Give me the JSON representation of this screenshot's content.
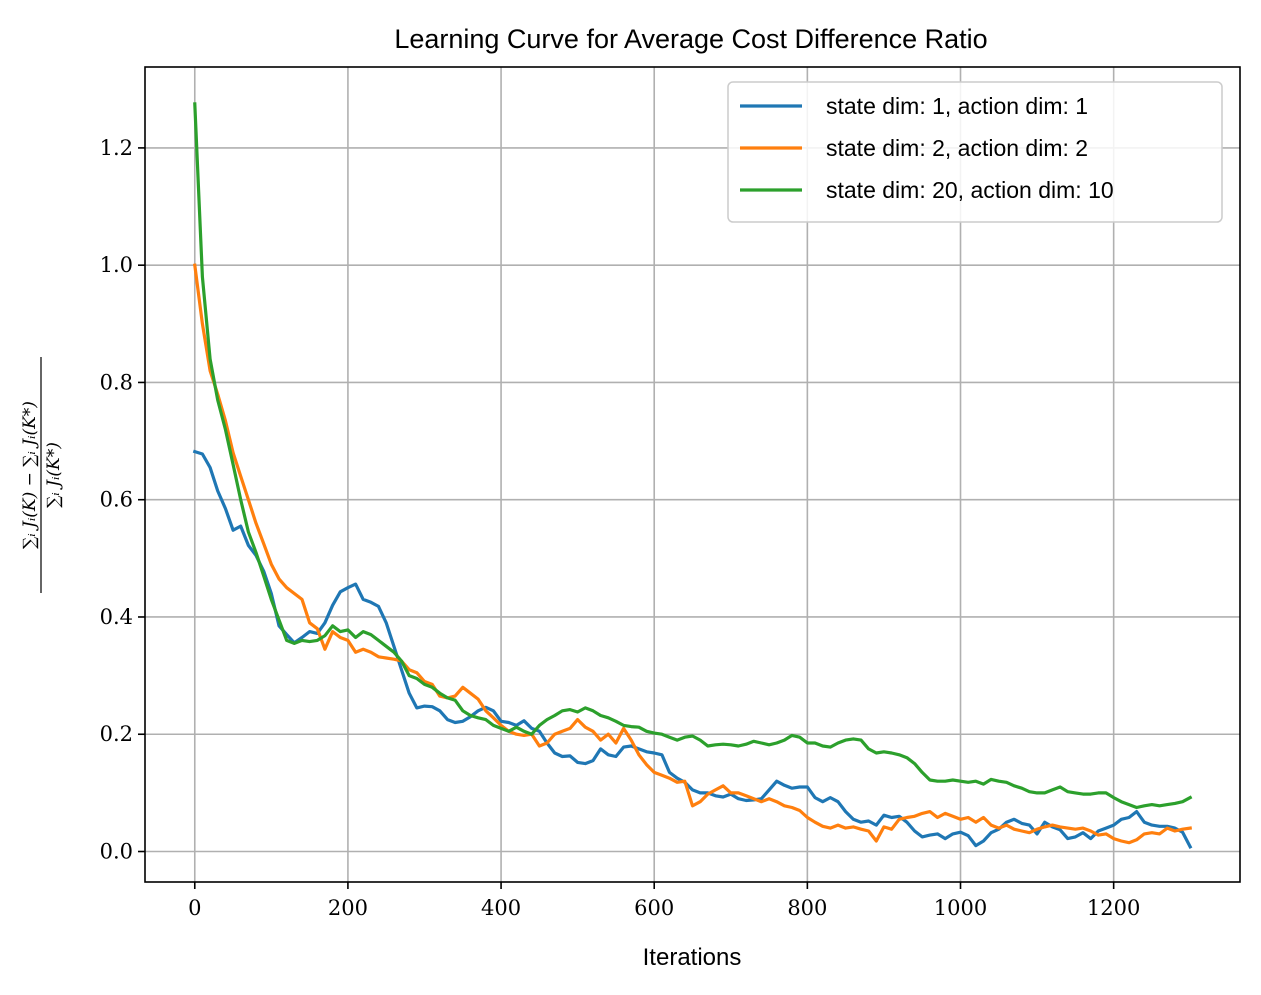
{
  "chart_data": {
    "type": "line",
    "title": "Learning Curve for Average Cost Difference Ratio",
    "xlabel": "Iterations",
    "ylabel_top": "∑ᵢ Jᵢ(K) − ∑ᵢ Jᵢ(K*)",
    "ylabel_bottom": "∑ᵢ Jᵢ(K*)",
    "xlim": [
      -65,
      1365
    ],
    "ylim": [
      -0.052,
      1.338
    ],
    "xticks": [
      0,
      200,
      400,
      600,
      800,
      1000,
      1200
    ],
    "yticks": [
      0.0,
      0.2,
      0.4,
      0.6,
      0.8,
      1.0,
      1.2
    ],
    "xtick_labels": [
      "0",
      "200",
      "400",
      "600",
      "800",
      "1000",
      "1200"
    ],
    "ytick_labels": [
      "0.0",
      "0.2",
      "0.4",
      "0.6",
      "0.8",
      "1.0",
      "1.2"
    ],
    "grid": true,
    "legend_position": "top-right",
    "series": [
      {
        "name": "state dim: 1, action dim: 1",
        "color": "#1f77b4",
        "x": [
          0,
          10,
          20,
          30,
          40,
          50,
          60,
          70,
          80,
          90,
          100,
          110,
          120,
          130,
          140,
          150,
          160,
          170,
          180,
          190,
          200,
          210,
          220,
          230,
          240,
          250,
          260,
          270,
          280,
          290,
          300,
          310,
          320,
          330,
          340,
          350,
          360,
          370,
          380,
          390,
          400,
          410,
          420,
          430,
          440,
          450,
          460,
          470,
          480,
          490,
          500,
          510,
          520,
          530,
          540,
          550,
          560,
          570,
          580,
          590,
          600,
          610,
          620,
          630,
          640,
          650,
          660,
          670,
          680,
          690,
          700,
          710,
          720,
          730,
          740,
          750,
          760,
          770,
          780,
          790,
          800,
          810,
          820,
          830,
          840,
          850,
          860,
          870,
          880,
          890,
          900,
          910,
          920,
          930,
          940,
          950,
          960,
          970,
          980,
          990,
          1000,
          1010,
          1020,
          1030,
          1040,
          1050,
          1060,
          1070,
          1080,
          1090,
          1100,
          1110,
          1120,
          1130,
          1140,
          1150,
          1160,
          1170,
          1180,
          1190,
          1200,
          1210,
          1220,
          1230,
          1240,
          1250,
          1260,
          1270,
          1280,
          1290,
          1300
        ],
        "values": [
          0.682,
          0.678,
          0.655,
          0.615,
          0.585,
          0.548,
          0.555,
          0.522,
          0.505,
          0.478,
          0.44,
          0.385,
          0.37,
          0.356,
          0.365,
          0.375,
          0.372,
          0.39,
          0.42,
          0.443,
          0.45,
          0.456,
          0.43,
          0.425,
          0.418,
          0.39,
          0.35,
          0.31,
          0.27,
          0.245,
          0.248,
          0.247,
          0.24,
          0.225,
          0.22,
          0.222,
          0.23,
          0.24,
          0.246,
          0.24,
          0.222,
          0.22,
          0.215,
          0.223,
          0.21,
          0.205,
          0.185,
          0.168,
          0.162,
          0.163,
          0.152,
          0.15,
          0.155,
          0.175,
          0.165,
          0.162,
          0.178,
          0.18,
          0.175,
          0.17,
          0.168,
          0.165,
          0.135,
          0.125,
          0.118,
          0.105,
          0.1,
          0.1,
          0.095,
          0.093,
          0.098,
          0.09,
          0.087,
          0.088,
          0.09,
          0.105,
          0.12,
          0.113,
          0.108,
          0.11,
          0.11,
          0.092,
          0.085,
          0.092,
          0.085,
          0.068,
          0.055,
          0.05,
          0.052,
          0.045,
          0.062,
          0.058,
          0.06,
          0.05,
          0.035,
          0.025,
          0.028,
          0.03,
          0.022,
          0.03,
          0.033,
          0.027,
          0.01,
          0.018,
          0.032,
          0.038,
          0.05,
          0.055,
          0.048,
          0.045,
          0.03,
          0.05,
          0.042,
          0.037,
          0.022,
          0.025,
          0.032,
          0.022,
          0.035,
          0.04,
          0.045,
          0.055,
          0.058,
          0.068,
          0.05,
          0.045,
          0.043,
          0.043,
          0.04,
          0.033,
          0.008
        ]
      },
      {
        "name": "state dim: 2, action dim: 2",
        "color": "#ff7f0e",
        "x": [
          0,
          10,
          20,
          30,
          40,
          50,
          60,
          70,
          80,
          90,
          100,
          110,
          120,
          130,
          140,
          150,
          160,
          170,
          180,
          190,
          200,
          210,
          220,
          230,
          240,
          250,
          260,
          270,
          280,
          290,
          300,
          310,
          320,
          330,
          340,
          350,
          360,
          370,
          380,
          390,
          400,
          410,
          420,
          430,
          440,
          450,
          460,
          470,
          480,
          490,
          500,
          510,
          520,
          530,
          540,
          550,
          560,
          570,
          580,
          590,
          600,
          610,
          620,
          630,
          640,
          650,
          660,
          670,
          680,
          690,
          700,
          710,
          720,
          730,
          740,
          750,
          760,
          770,
          780,
          790,
          800,
          810,
          820,
          830,
          840,
          850,
          860,
          870,
          880,
          890,
          900,
          910,
          920,
          930,
          940,
          950,
          960,
          970,
          980,
          990,
          1000,
          1010,
          1020,
          1030,
          1040,
          1050,
          1060,
          1070,
          1080,
          1090,
          1100,
          1110,
          1120,
          1130,
          1140,
          1150,
          1160,
          1170,
          1180,
          1190,
          1200,
          1210,
          1220,
          1230,
          1240,
          1250,
          1260,
          1270,
          1280,
          1290,
          1300
        ],
        "values": [
          1.0,
          0.9,
          0.82,
          0.78,
          0.735,
          0.68,
          0.64,
          0.6,
          0.56,
          0.525,
          0.49,
          0.465,
          0.45,
          0.44,
          0.43,
          0.39,
          0.38,
          0.345,
          0.375,
          0.365,
          0.36,
          0.34,
          0.345,
          0.34,
          0.332,
          0.33,
          0.328,
          0.325,
          0.31,
          0.305,
          0.29,
          0.285,
          0.265,
          0.262,
          0.265,
          0.28,
          0.27,
          0.26,
          0.24,
          0.228,
          0.215,
          0.205,
          0.2,
          0.198,
          0.2,
          0.18,
          0.185,
          0.2,
          0.205,
          0.21,
          0.225,
          0.212,
          0.205,
          0.19,
          0.2,
          0.185,
          0.21,
          0.19,
          0.165,
          0.148,
          0.135,
          0.13,
          0.125,
          0.118,
          0.12,
          0.078,
          0.085,
          0.098,
          0.105,
          0.112,
          0.1,
          0.1,
          0.095,
          0.09,
          0.085,
          0.09,
          0.085,
          0.078,
          0.075,
          0.07,
          0.058,
          0.05,
          0.043,
          0.04,
          0.045,
          0.04,
          0.042,
          0.038,
          0.035,
          0.018,
          0.042,
          0.038,
          0.055,
          0.058,
          0.06,
          0.065,
          0.068,
          0.058,
          0.065,
          0.06,
          0.055,
          0.058,
          0.05,
          0.058,
          0.045,
          0.04,
          0.045,
          0.038,
          0.035,
          0.032,
          0.038,
          0.042,
          0.045,
          0.042,
          0.04,
          0.038,
          0.04,
          0.035,
          0.028,
          0.03,
          0.022,
          0.018,
          0.015,
          0.02,
          0.03,
          0.032,
          0.03,
          0.04,
          0.035,
          0.038,
          0.04
        ]
      },
      {
        "name": "state dim: 20, action dim: 10",
        "color": "#2ca02c",
        "x": [
          0,
          10,
          20,
          30,
          40,
          50,
          60,
          70,
          80,
          90,
          100,
          110,
          120,
          130,
          140,
          150,
          160,
          170,
          180,
          190,
          200,
          210,
          220,
          230,
          240,
          250,
          260,
          270,
          280,
          290,
          300,
          310,
          320,
          330,
          340,
          350,
          360,
          370,
          380,
          390,
          400,
          410,
          420,
          430,
          440,
          450,
          460,
          470,
          480,
          490,
          500,
          510,
          520,
          530,
          540,
          550,
          560,
          570,
          580,
          590,
          600,
          610,
          620,
          630,
          640,
          650,
          660,
          670,
          680,
          690,
          700,
          710,
          720,
          730,
          740,
          750,
          760,
          770,
          780,
          790,
          800,
          810,
          820,
          830,
          840,
          850,
          860,
          870,
          880,
          890,
          900,
          910,
          920,
          930,
          940,
          950,
          960,
          970,
          980,
          990,
          1000,
          1010,
          1020,
          1030,
          1040,
          1050,
          1060,
          1070,
          1080,
          1090,
          1100,
          1110,
          1120,
          1130,
          1140,
          1150,
          1160,
          1170,
          1180,
          1190,
          1200,
          1210,
          1220,
          1230,
          1240,
          1250,
          1260,
          1270,
          1280,
          1290,
          1300
        ],
        "values": [
          1.275,
          0.98,
          0.84,
          0.77,
          0.72,
          0.66,
          0.6,
          0.545,
          0.51,
          0.47,
          0.43,
          0.395,
          0.36,
          0.355,
          0.36,
          0.358,
          0.36,
          0.368,
          0.385,
          0.375,
          0.378,
          0.365,
          0.375,
          0.37,
          0.36,
          0.35,
          0.34,
          0.325,
          0.3,
          0.295,
          0.285,
          0.28,
          0.27,
          0.262,
          0.258,
          0.24,
          0.232,
          0.228,
          0.225,
          0.215,
          0.21,
          0.205,
          0.212,
          0.205,
          0.2,
          0.215,
          0.225,
          0.232,
          0.24,
          0.242,
          0.238,
          0.245,
          0.24,
          0.232,
          0.228,
          0.222,
          0.215,
          0.213,
          0.212,
          0.205,
          0.202,
          0.2,
          0.195,
          0.19,
          0.195,
          0.197,
          0.19,
          0.18,
          0.182,
          0.183,
          0.182,
          0.18,
          0.183,
          0.188,
          0.185,
          0.182,
          0.185,
          0.19,
          0.198,
          0.195,
          0.185,
          0.185,
          0.18,
          0.178,
          0.185,
          0.19,
          0.192,
          0.19,
          0.175,
          0.168,
          0.17,
          0.168,
          0.165,
          0.16,
          0.15,
          0.135,
          0.122,
          0.12,
          0.12,
          0.122,
          0.12,
          0.118,
          0.12,
          0.115,
          0.123,
          0.12,
          0.118,
          0.112,
          0.108,
          0.102,
          0.1,
          0.1,
          0.105,
          0.11,
          0.102,
          0.1,
          0.098,
          0.098,
          0.1,
          0.1,
          0.092,
          0.085,
          0.08,
          0.075,
          0.078,
          0.08,
          0.078,
          0.08,
          0.082,
          0.085,
          0.092
        ]
      }
    ]
  }
}
